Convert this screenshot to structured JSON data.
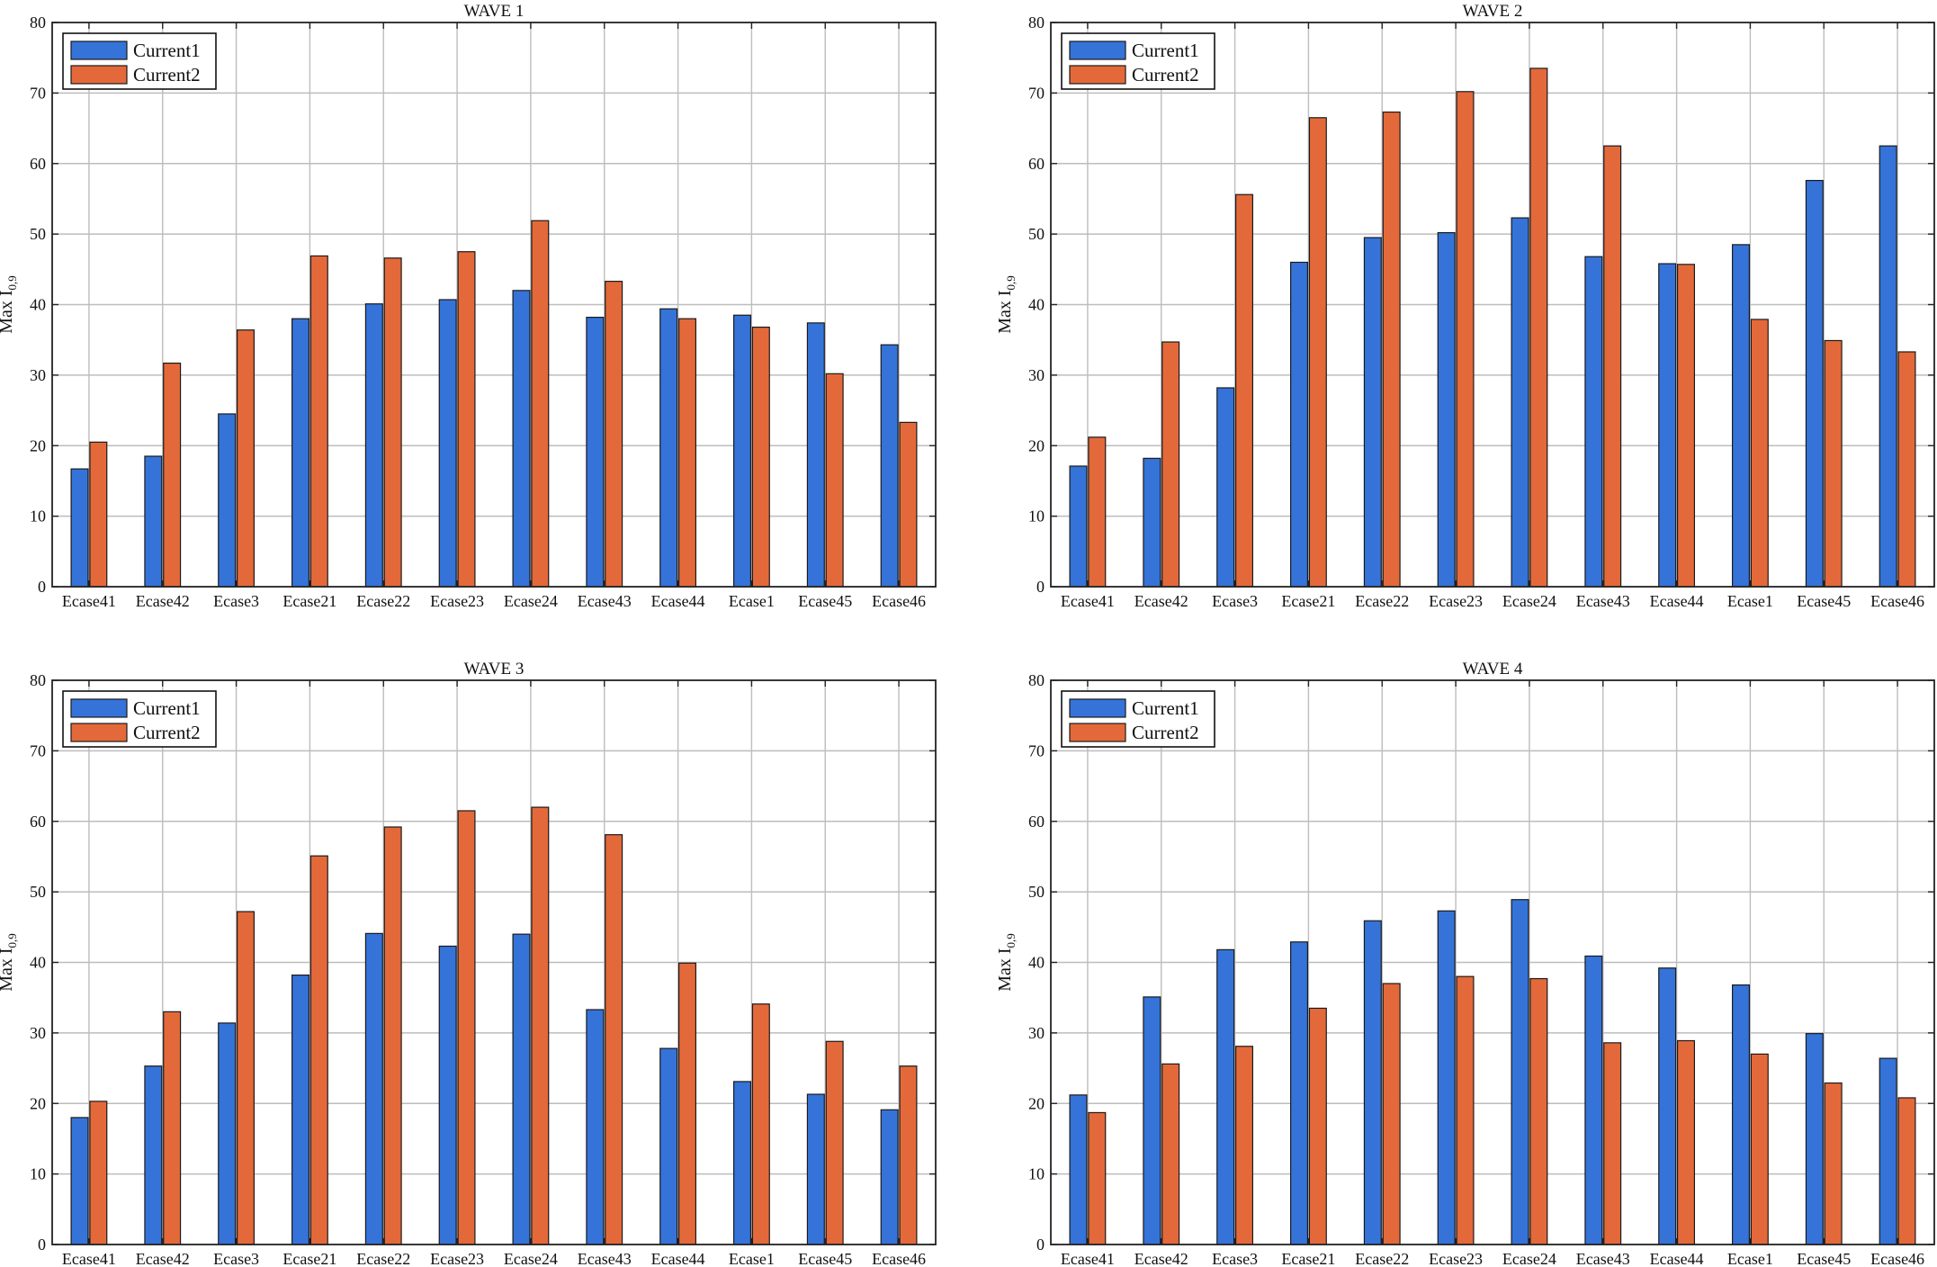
{
  "figure": {
    "colors": {
      "current1": "#3573d9",
      "current2": "#e4693a",
      "grid": "#bdbdbd",
      "axis": "#222222"
    }
  },
  "chart_data": [
    {
      "type": "bar",
      "title": "WAVE 1",
      "ylabel_main": "Max I",
      "ylabel_sub": "0,9",
      "ylim": [
        0,
        80
      ],
      "yticks": [
        0,
        10,
        20,
        30,
        40,
        50,
        60,
        70,
        80
      ],
      "grid": true,
      "legend_position": "top-left",
      "categories": [
        "Ecase41",
        "Ecase42",
        "Ecase3",
        "Ecase21",
        "Ecase22",
        "Ecase23",
        "Ecase24",
        "Ecase43",
        "Ecase44",
        "Ecase1",
        "Ecase45",
        "Ecase46"
      ],
      "series": [
        {
          "name": "Current1",
          "values": [
            16.7,
            18.5,
            24.5,
            38.0,
            40.1,
            40.7,
            42.0,
            38.2,
            39.4,
            38.5,
            37.4,
            34.3
          ]
        },
        {
          "name": "Current2",
          "values": [
            20.5,
            31.7,
            36.4,
            46.9,
            46.6,
            47.5,
            51.9,
            43.3,
            38.0,
            36.8,
            30.2,
            23.3
          ]
        }
      ]
    },
    {
      "type": "bar",
      "title": "WAVE 2",
      "ylabel_main": "Max I",
      "ylabel_sub": "0,9",
      "ylim": [
        0,
        80
      ],
      "yticks": [
        0,
        10,
        20,
        30,
        40,
        50,
        60,
        70,
        80
      ],
      "grid": true,
      "legend_position": "top-left",
      "categories": [
        "Ecase41",
        "Ecase42",
        "Ecase3",
        "Ecase21",
        "Ecase22",
        "Ecase23",
        "Ecase24",
        "Ecase43",
        "Ecase44",
        "Ecase1",
        "Ecase45",
        "Ecase46"
      ],
      "series": [
        {
          "name": "Current1",
          "values": [
            17.1,
            18.2,
            28.2,
            46.0,
            49.5,
            50.2,
            52.3,
            46.8,
            45.8,
            48.5,
            57.6,
            62.5
          ]
        },
        {
          "name": "Current2",
          "values": [
            21.2,
            34.7,
            55.6,
            66.5,
            67.3,
            70.2,
            73.5,
            62.5,
            45.7,
            37.9,
            34.9,
            33.3
          ]
        }
      ]
    },
    {
      "type": "bar",
      "title": "WAVE 3",
      "ylabel_main": "Max I",
      "ylabel_sub": "0,9",
      "ylim": [
        0,
        80
      ],
      "yticks": [
        0,
        10,
        20,
        30,
        40,
        50,
        60,
        70,
        80
      ],
      "grid": true,
      "legend_position": "top-left",
      "categories": [
        "Ecase41",
        "Ecase42",
        "Ecase3",
        "Ecase21",
        "Ecase22",
        "Ecase23",
        "Ecase24",
        "Ecase43",
        "Ecase44",
        "Ecase1",
        "Ecase45",
        "Ecase46"
      ],
      "series": [
        {
          "name": "Current1",
          "values": [
            18.0,
            25.3,
            31.4,
            38.2,
            44.1,
            42.3,
            44.0,
            33.3,
            27.8,
            23.1,
            21.3,
            19.1
          ]
        },
        {
          "name": "Current2",
          "values": [
            20.3,
            33.0,
            47.2,
            55.1,
            59.2,
            61.5,
            62.0,
            58.1,
            39.9,
            34.1,
            28.8,
            25.3
          ]
        }
      ]
    },
    {
      "type": "bar",
      "title": "WAVE 4",
      "ylabel_main": "Max I",
      "ylabel_sub": "0,9",
      "ylim": [
        0,
        80
      ],
      "yticks": [
        0,
        10,
        20,
        30,
        40,
        50,
        60,
        70,
        80
      ],
      "grid": true,
      "legend_position": "top-left",
      "categories": [
        "Ecase41",
        "Ecase42",
        "Ecase3",
        "Ecase21",
        "Ecase22",
        "Ecase23",
        "Ecase24",
        "Ecase43",
        "Ecase44",
        "Ecase1",
        "Ecase45",
        "Ecase46"
      ],
      "series": [
        {
          "name": "Current1",
          "values": [
            21.2,
            35.1,
            41.8,
            42.9,
            45.9,
            47.3,
            48.9,
            40.9,
            39.2,
            36.8,
            29.9,
            26.4
          ]
        },
        {
          "name": "Current2",
          "values": [
            18.7,
            25.6,
            28.1,
            33.5,
            37.0,
            38.0,
            37.7,
            28.6,
            28.9,
            27.0,
            22.9,
            20.8
          ]
        }
      ]
    }
  ]
}
